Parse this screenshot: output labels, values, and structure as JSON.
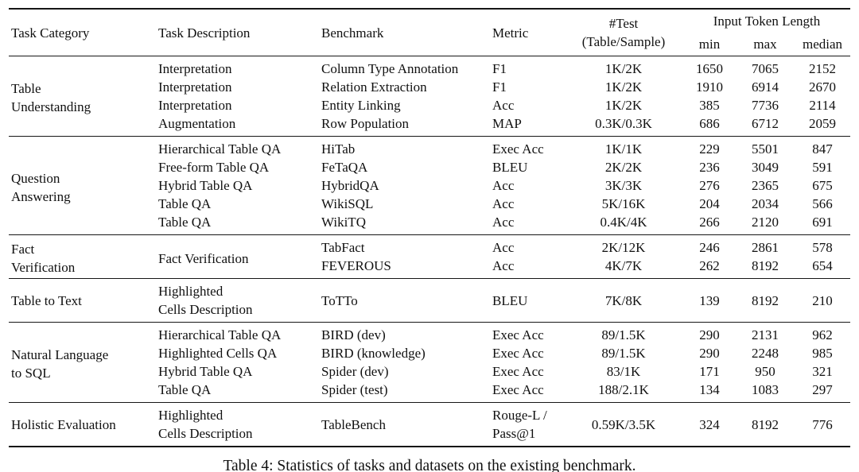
{
  "table": {
    "headers": {
      "task_category": "Task Category",
      "task_description": "Task Description",
      "benchmark": "Benchmark",
      "metric": "Metric",
      "test": "#Test\n(Table/Sample)",
      "input_token_length": "Input Token Length",
      "min": "min",
      "max": "max",
      "median": "median"
    },
    "groups": [
      {
        "category": "Table\nUnderstanding",
        "rows": [
          {
            "description": "Interpretation",
            "benchmark": "Column Type Annotation",
            "metric": "F1",
            "test": "1K/2K",
            "min": "1650",
            "max": "7065",
            "median": "2152"
          },
          {
            "description": "Interpretation",
            "benchmark": "Relation Extraction",
            "metric": "F1",
            "test": "1K/2K",
            "min": "1910",
            "max": "6914",
            "median": "2670"
          },
          {
            "description": "Interpretation",
            "benchmark": "Entity Linking",
            "metric": "Acc",
            "test": "1K/2K",
            "min": "385",
            "max": "7736",
            "median": "2114"
          },
          {
            "description": "Augmentation",
            "benchmark": "Row Population",
            "metric": "MAP",
            "test": "0.3K/0.3K",
            "min": "686",
            "max": "6712",
            "median": "2059"
          }
        ]
      },
      {
        "category": "Question\nAnswering",
        "rows": [
          {
            "description": "Hierarchical Table QA",
            "benchmark": "HiTab",
            "metric": "Exec Acc",
            "test": "1K/1K",
            "min": "229",
            "max": "5501",
            "median": "847"
          },
          {
            "description": "Free-form Table QA",
            "benchmark": "FeTaQA",
            "metric": "BLEU",
            "test": "2K/2K",
            "min": "236",
            "max": "3049",
            "median": "591"
          },
          {
            "description": "Hybrid Table QA",
            "benchmark": "HybridQA",
            "metric": "Acc",
            "test": "3K/3K",
            "min": "276",
            "max": "2365",
            "median": "675"
          },
          {
            "description": "Table QA",
            "benchmark": "WikiSQL",
            "metric": "Acc",
            "test": "5K/16K",
            "min": "204",
            "max": "2034",
            "median": "566"
          },
          {
            "description": "Table QA",
            "benchmark": "WikiTQ",
            "metric": "Acc",
            "test": "0.4K/4K",
            "min": "266",
            "max": "2120",
            "median": "691"
          }
        ]
      },
      {
        "category": "Fact\nVerification",
        "shared_description": "Fact Verification",
        "rows": [
          {
            "benchmark": "TabFact",
            "metric": "Acc",
            "test": "2K/12K",
            "min": "246",
            "max": "2861",
            "median": "578"
          },
          {
            "benchmark": "FEVEROUS",
            "metric": "Acc",
            "test": "4K/7K",
            "min": "262",
            "max": "8192",
            "median": "654"
          }
        ]
      },
      {
        "category": "Table to Text",
        "rows": [
          {
            "description": "Highlighted\nCells Description",
            "benchmark": "ToTTo",
            "metric": "BLEU",
            "test": "7K/8K",
            "min": "139",
            "max": "8192",
            "median": "210"
          }
        ]
      },
      {
        "category": "Natural Language\nto SQL",
        "rows": [
          {
            "description": "Hierarchical Table QA",
            "benchmark": "BIRD (dev)",
            "metric": "Exec Acc",
            "test": "89/1.5K",
            "min": "290",
            "max": "2131",
            "median": "962"
          },
          {
            "description": "Highlighted Cells QA",
            "benchmark": "BIRD (knowledge)",
            "metric": "Exec Acc",
            "test": "89/1.5K",
            "min": "290",
            "max": "2248",
            "median": "985"
          },
          {
            "description": "Hybrid Table QA",
            "benchmark": "Spider (dev)",
            "metric": "Exec Acc",
            "test": "83/1K",
            "min": "171",
            "max": "950",
            "median": "321"
          },
          {
            "description": "Table QA",
            "benchmark": "Spider (test)",
            "metric": "Exec Acc",
            "test": "188/2.1K",
            "min": "134",
            "max": "1083",
            "median": "297"
          }
        ]
      },
      {
        "category": "Holistic Evaluation",
        "rows": [
          {
            "description": "Highlighted\nCells Description",
            "benchmark": "TableBench",
            "metric": "Rouge-L /\nPass@1",
            "test": "0.59K/3.5K",
            "min": "324",
            "max": "8192",
            "median": "776"
          }
        ]
      }
    ]
  },
  "caption": "Table 4: Statistics of tasks and datasets on the existing benchmark.",
  "colors": {
    "text": "#101010",
    "background": "#ffffff",
    "rule": "#161616"
  }
}
